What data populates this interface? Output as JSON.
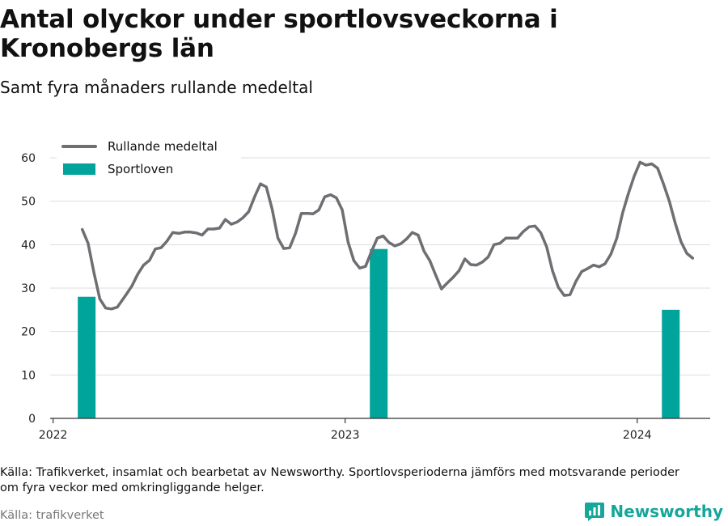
{
  "title": "Antal olyckor under sportlovsveckorna i Kronobergs län",
  "subtitle": "Samt fyra månaders rullande medeltal",
  "footnote": "Källa: Trafikverket, insamlat och bearbetat av Newsworthy. Sportlovsperioderna jämförs med motsvarande perioder om fyra veckor med omkringliggande helger.",
  "source": "Källa: trafikverket",
  "brand": "Newsworthy",
  "colors": {
    "line": "#6e6e73",
    "bar": "#00a49a",
    "brand": "#15a79a",
    "grid": "#dddddd"
  },
  "icons": {
    "brand": "bar-chart-speech-bubble-icon"
  },
  "chart_data": {
    "type": "bar+line",
    "ylim": [
      0,
      60
    ],
    "yticks": [
      0,
      10,
      20,
      30,
      40,
      50,
      60
    ],
    "xticks": [
      {
        "label": "2022",
        "year": 2022.0
      },
      {
        "label": "2023",
        "year": 2023.0
      },
      {
        "label": "2024",
        "year": 2024.0
      }
    ],
    "legend_position": "top-left",
    "grid": "horizontal",
    "series": [
      {
        "name": "Rullande medeltal",
        "type": "line",
        "points": [
          [
            2022.1,
            43.5
          ],
          [
            2022.12,
            40.3
          ],
          [
            2022.14,
            33.5
          ],
          [
            2022.16,
            27.5
          ],
          [
            2022.18,
            25.4
          ],
          [
            2022.2,
            25.2
          ],
          [
            2022.22,
            25.6
          ],
          [
            2022.25,
            28.5
          ],
          [
            2022.27,
            30.5
          ],
          [
            2022.29,
            33.2
          ],
          [
            2022.31,
            35.3
          ],
          [
            2022.33,
            36.4
          ],
          [
            2022.35,
            39.0
          ],
          [
            2022.37,
            39.3
          ],
          [
            2022.39,
            40.8
          ],
          [
            2022.41,
            42.8
          ],
          [
            2022.43,
            42.6
          ],
          [
            2022.45,
            42.9
          ],
          [
            2022.47,
            42.9
          ],
          [
            2022.49,
            42.7
          ],
          [
            2022.51,
            42.2
          ],
          [
            2022.53,
            43.6
          ],
          [
            2022.55,
            43.6
          ],
          [
            2022.57,
            43.8
          ],
          [
            2022.59,
            45.8
          ],
          [
            2022.61,
            44.7
          ],
          [
            2022.63,
            45.2
          ],
          [
            2022.65,
            46.2
          ],
          [
            2022.67,
            47.6
          ],
          [
            2022.69,
            51.0
          ],
          [
            2022.71,
            54.0
          ],
          [
            2022.73,
            53.3
          ],
          [
            2022.75,
            48.2
          ],
          [
            2022.77,
            41.5
          ],
          [
            2022.79,
            39.1
          ],
          [
            2022.81,
            39.3
          ],
          [
            2022.83,
            42.6
          ],
          [
            2022.85,
            47.2
          ],
          [
            2022.87,
            47.2
          ],
          [
            2022.89,
            47.1
          ],
          [
            2022.91,
            48.0
          ],
          [
            2022.93,
            51.0
          ],
          [
            2022.95,
            51.5
          ],
          [
            2022.97,
            50.8
          ],
          [
            2022.99,
            48.0
          ],
          [
            2023.01,
            40.6
          ],
          [
            2023.03,
            36.3
          ],
          [
            2023.05,
            34.6
          ],
          [
            2023.07,
            35.0
          ],
          [
            2023.09,
            38.4
          ],
          [
            2023.11,
            41.5
          ],
          [
            2023.13,
            42.0
          ],
          [
            2023.15,
            40.5
          ],
          [
            2023.17,
            39.7
          ],
          [
            2023.19,
            40.2
          ],
          [
            2023.21,
            41.3
          ],
          [
            2023.23,
            42.8
          ],
          [
            2023.25,
            42.2
          ],
          [
            2023.27,
            38.5
          ],
          [
            2023.29,
            36.3
          ],
          [
            2023.31,
            33.0
          ],
          [
            2023.33,
            29.8
          ],
          [
            2023.35,
            31.2
          ],
          [
            2023.37,
            32.5
          ],
          [
            2023.39,
            34.0
          ],
          [
            2023.41,
            36.7
          ],
          [
            2023.43,
            35.4
          ],
          [
            2023.45,
            35.3
          ],
          [
            2023.47,
            36.0
          ],
          [
            2023.49,
            37.2
          ],
          [
            2023.51,
            40.0
          ],
          [
            2023.53,
            40.3
          ],
          [
            2023.55,
            41.5
          ],
          [
            2023.57,
            41.5
          ],
          [
            2023.59,
            41.5
          ],
          [
            2023.61,
            43.0
          ],
          [
            2023.63,
            44.1
          ],
          [
            2023.65,
            44.3
          ],
          [
            2023.67,
            42.7
          ],
          [
            2023.69,
            39.5
          ],
          [
            2023.71,
            34.0
          ],
          [
            2023.73,
            30.2
          ],
          [
            2023.75,
            28.3
          ],
          [
            2023.77,
            28.5
          ],
          [
            2023.79,
            31.5
          ],
          [
            2023.81,
            33.8
          ],
          [
            2023.83,
            34.5
          ],
          [
            2023.85,
            35.3
          ],
          [
            2023.87,
            34.9
          ],
          [
            2023.89,
            35.6
          ],
          [
            2023.91,
            37.8
          ],
          [
            2023.93,
            41.5
          ],
          [
            2023.95,
            47.3
          ],
          [
            2023.97,
            51.8
          ],
          [
            2023.99,
            55.8
          ],
          [
            2024.01,
            59.0
          ],
          [
            2024.03,
            58.3
          ],
          [
            2024.05,
            58.6
          ],
          [
            2024.07,
            57.6
          ],
          [
            2024.09,
            54.0
          ],
          [
            2024.11,
            50.0
          ],
          [
            2024.13,
            45.0
          ],
          [
            2024.15,
            40.7
          ],
          [
            2024.17,
            38.0
          ],
          [
            2024.19,
            36.9
          ]
        ]
      },
      {
        "name": "Sportloven",
        "type": "bar",
        "points": [
          [
            2022.115,
            28
          ],
          [
            2023.115,
            39
          ],
          [
            2024.115,
            25
          ]
        ]
      }
    ]
  }
}
